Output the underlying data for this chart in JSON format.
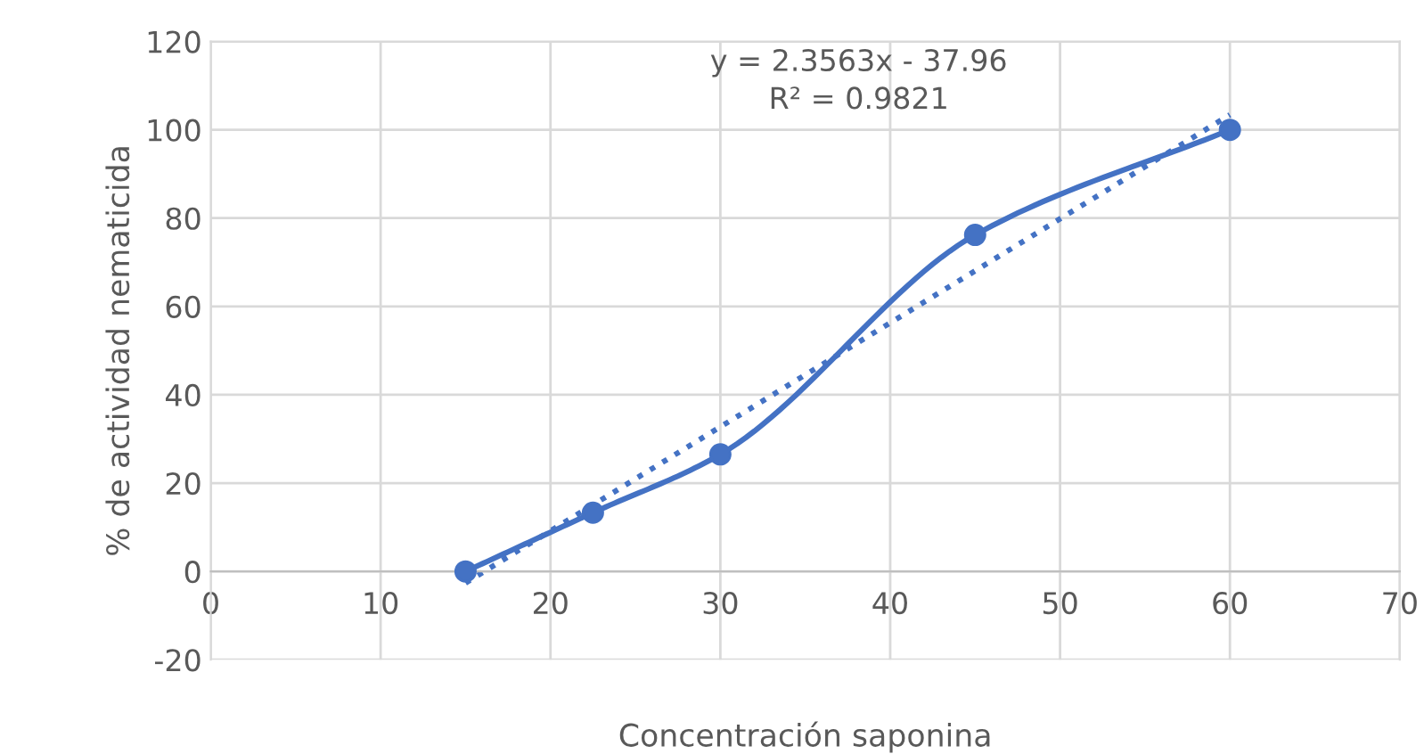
{
  "chart_data": {
    "type": "line",
    "xlabel": "Concentración saponina",
    "ylabel": "% de actividad nematicida",
    "x": [
      15,
      22.5,
      30,
      45,
      60
    ],
    "series": [
      {
        "color": "#4472c4",
        "values": [
          0,
          13.3,
          26.5,
          76.2,
          100
        ],
        "marker": "circle",
        "line_style": "solid"
      },
      {
        "type": "line",
        "x": [
          15,
          60
        ],
        "values": [
          -2.6,
          103.4
        ],
        "color": "#4472c4",
        "marker": "none",
        "line_style": "dotted"
      }
    ],
    "annotations": [
      "y = 2.3563x - 37.96",
      "R² = 0.9821"
    ],
    "xlim": [
      0,
      70
    ],
    "xticks": [
      0,
      10,
      20,
      30,
      40,
      50,
      60,
      70
    ],
    "ylim": [
      -20,
      120
    ],
    "yticks": [
      -20,
      0,
      20,
      40,
      60,
      80,
      100,
      120
    ],
    "grid": true,
    "legend": false
  }
}
